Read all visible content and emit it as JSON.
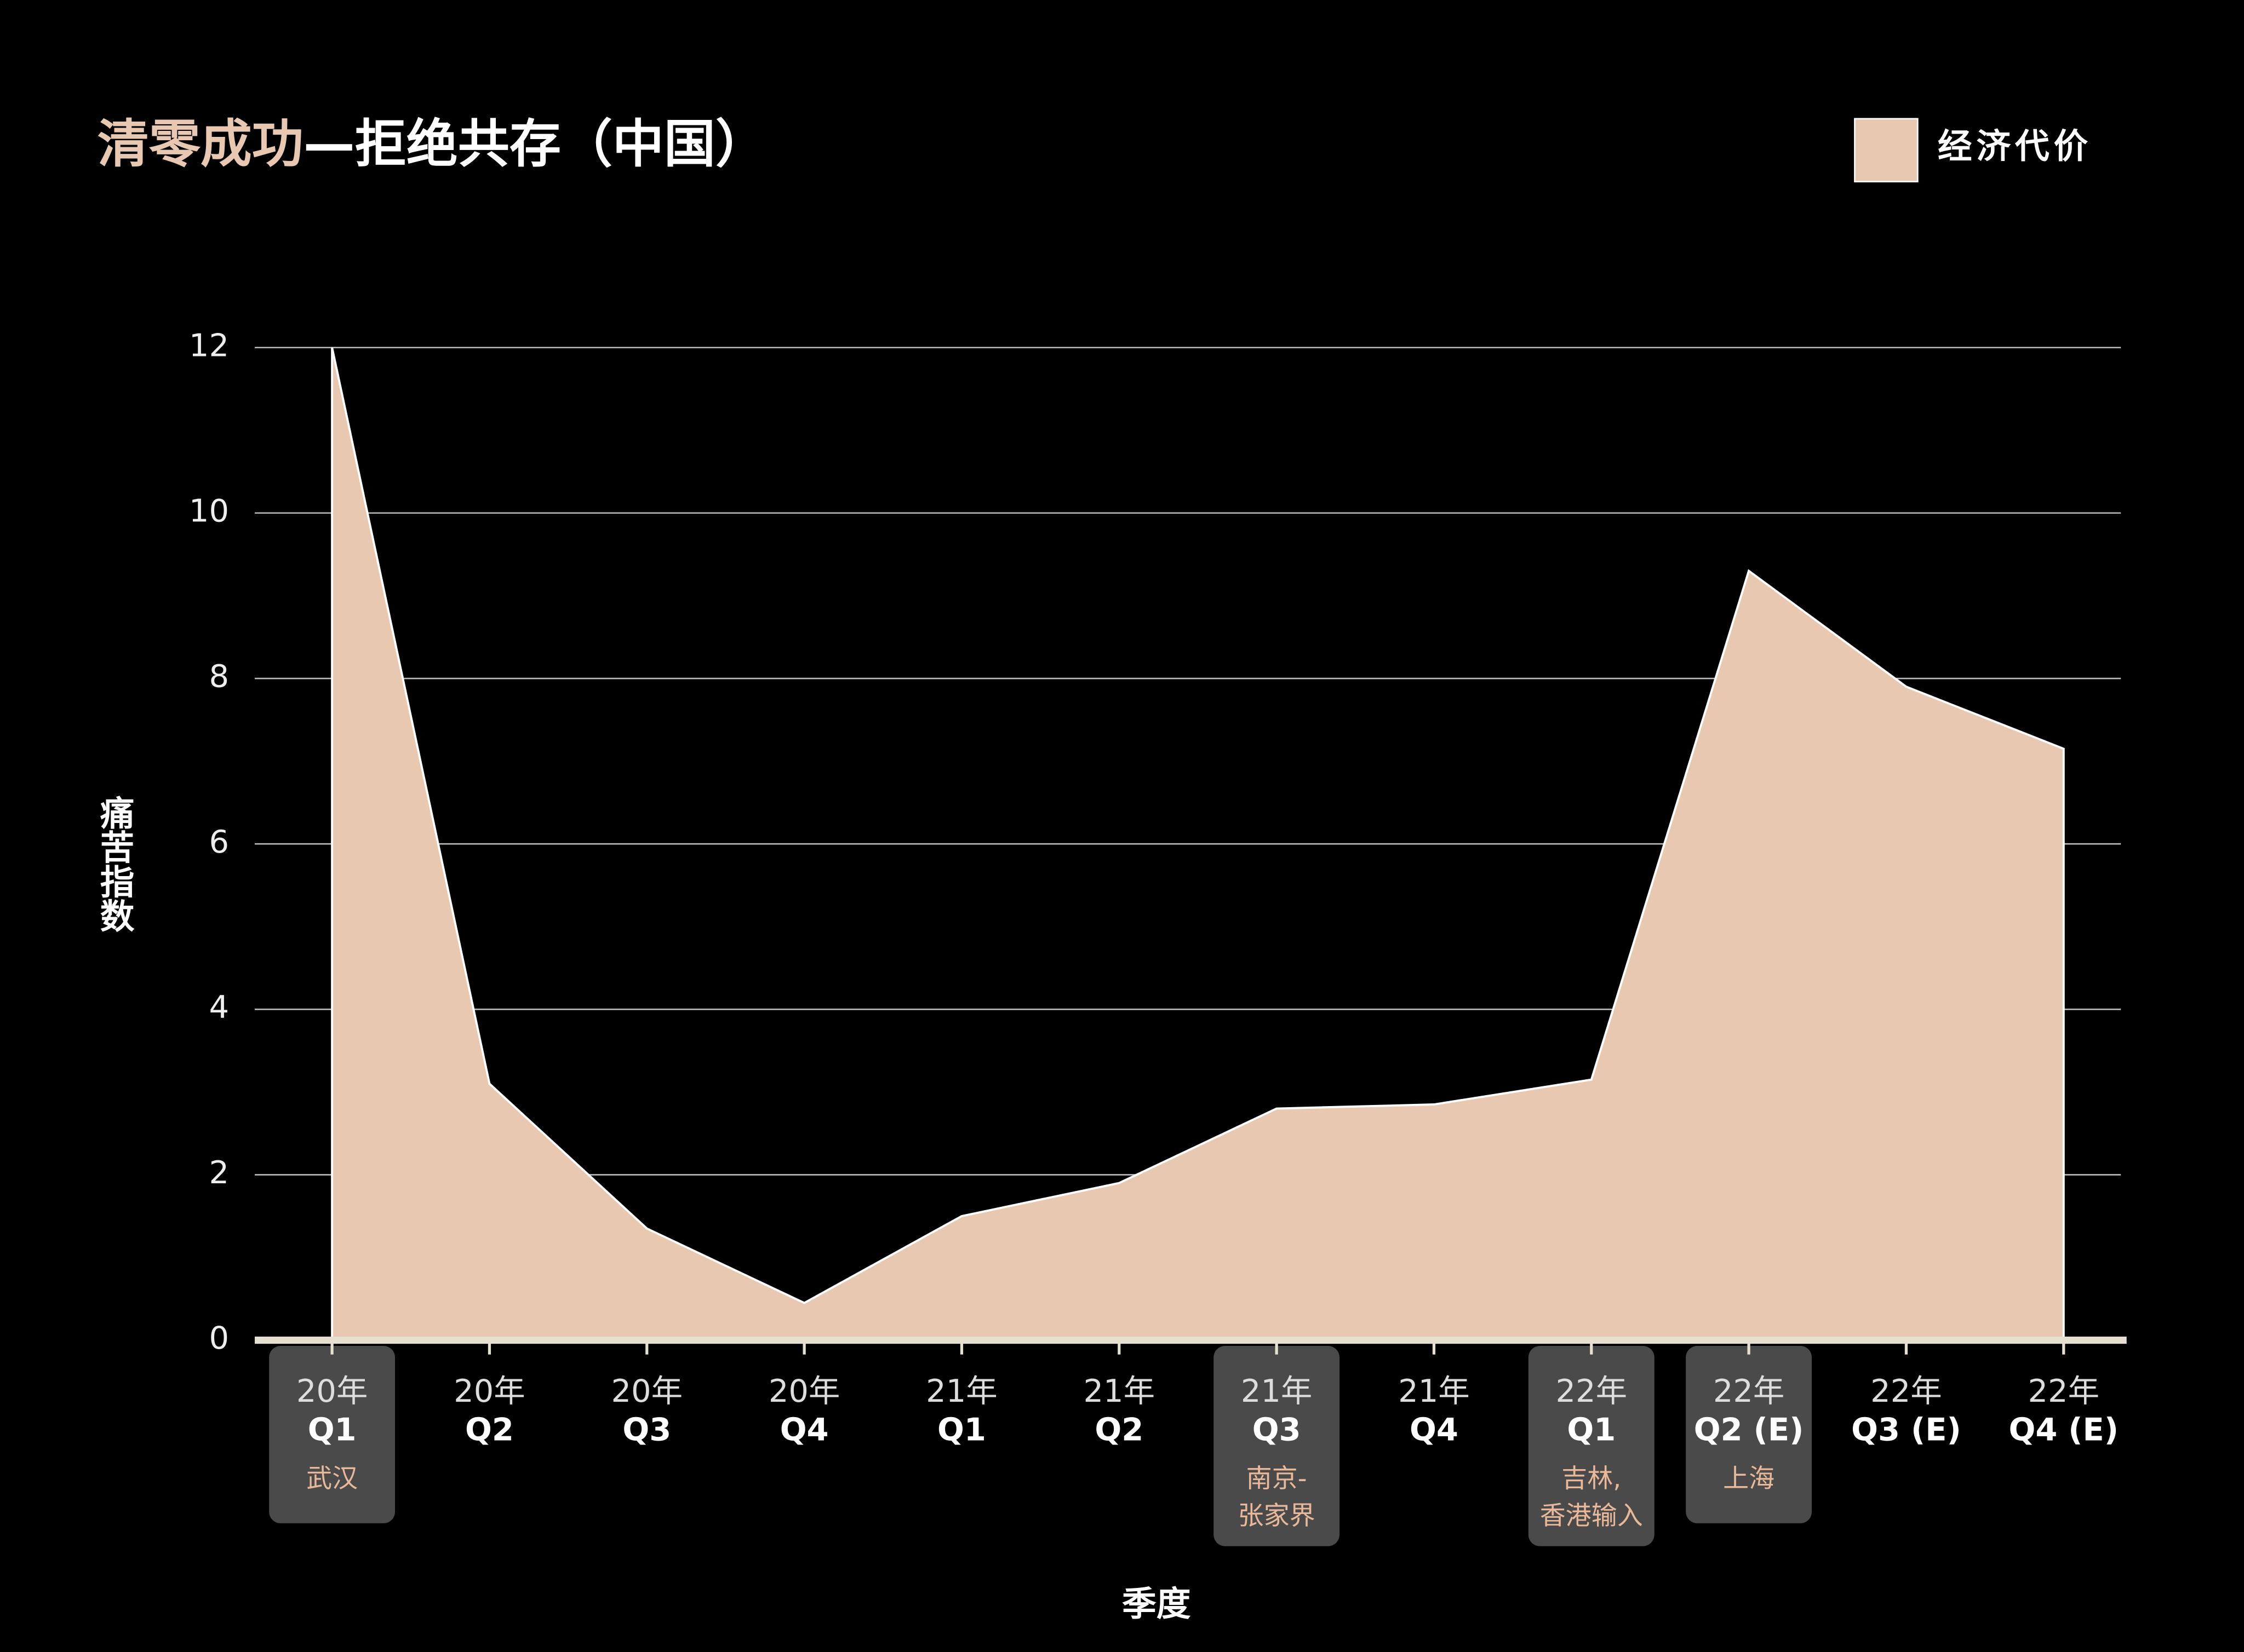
{
  "chart_data": {
    "type": "area",
    "title": [
      "清零成功",
      "—拒绝共存（中国）"
    ],
    "title_colors": [
      "#e8c8b0",
      "#ffffff"
    ],
    "x_label": "季度",
    "y_label": "痛苦指数",
    "categories": [
      [
        "20年",
        "Q1"
      ],
      [
        "20年",
        "Q2"
      ],
      [
        "20年",
        "Q3"
      ],
      [
        "20年",
        "Q4"
      ],
      [
        "21年",
        "Q1"
      ],
      [
        "21年",
        "Q2"
      ],
      [
        "21年",
        "Q3"
      ],
      [
        "21年",
        "Q4"
      ],
      [
        "22年",
        "Q1"
      ],
      [
        "22年",
        "Q2 (E)"
      ],
      [
        "22年",
        "Q3 (E)"
      ],
      [
        "22年",
        "Q4 (E)"
      ]
    ],
    "annotations": [
      [
        "武汉"
      ],
      null,
      null,
      null,
      null,
      null,
      [
        "南京-",
        "张家界"
      ],
      null,
      [
        "吉林,",
        "香港输入"
      ],
      [
        "上海"
      ],
      null,
      null
    ],
    "series": [
      {
        "name": "经济代价",
        "color": "#e8c8b0",
        "values": [
          12,
          3.1,
          1.35,
          0.45,
          1.5,
          1.9,
          2.8,
          2.85,
          3.15,
          9.3,
          7.9,
          7.15
        ]
      }
    ],
    "ylim": [
      0,
      12
    ],
    "yticks": [
      0,
      2,
      4,
      6,
      8,
      10,
      12
    ],
    "grid": true,
    "legend": "top-right"
  }
}
